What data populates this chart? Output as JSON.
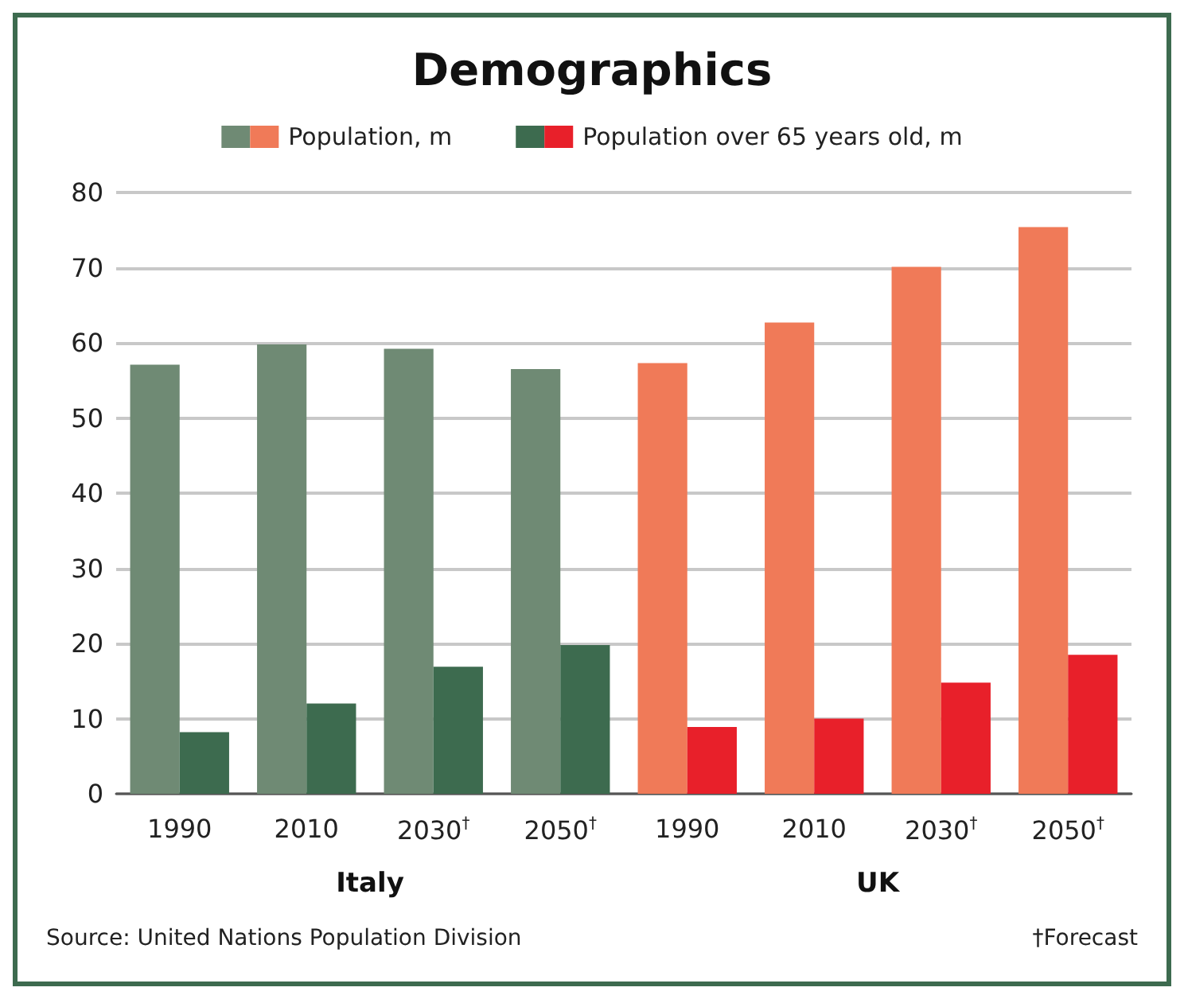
{
  "chart_data": {
    "type": "bar",
    "title": "Demographics",
    "categories": [
      "1990",
      "2010",
      "2030$^{†}$",
      "2050$^{†}$",
      "1990",
      "2010",
      "2030$^{†}$",
      "2050$^{†}$"
    ],
    "series": [
      {
        "name": "Population, m",
        "colors": [
          "#6f8a74",
          "#6f8a74",
          "#6f8a74",
          "#6f8a74",
          "#f07a58",
          "#f07a58",
          "#f07a58",
          "#f07a58"
        ],
        "values": [
          57.1,
          59.8,
          59.2,
          56.5,
          57.3,
          62.7,
          70.1,
          75.4
        ]
      },
      {
        "name": "Population over 65 years old, m",
        "colors": [
          "#3d6b4f",
          "#3d6b4f",
          "#3d6b4f",
          "#3d6b4f",
          "#e8202a",
          "#e8202a",
          "#e8202a",
          "#e8202a"
        ],
        "values": [
          8.2,
          12.0,
          16.9,
          19.8,
          8.9,
          10.0,
          14.8,
          18.5
        ]
      }
    ],
    "ylim": [
      0,
      80
    ],
    "yticks": [
      0,
      10,
      20,
      30,
      40,
      50,
      60,
      70,
      80
    ],
    "grid": "y",
    "legend": "top",
    "annotations": [
      "Italy",
      "UK",
      "Source: United Nations Population Division",
      "†Forecast"
    ]
  }
}
